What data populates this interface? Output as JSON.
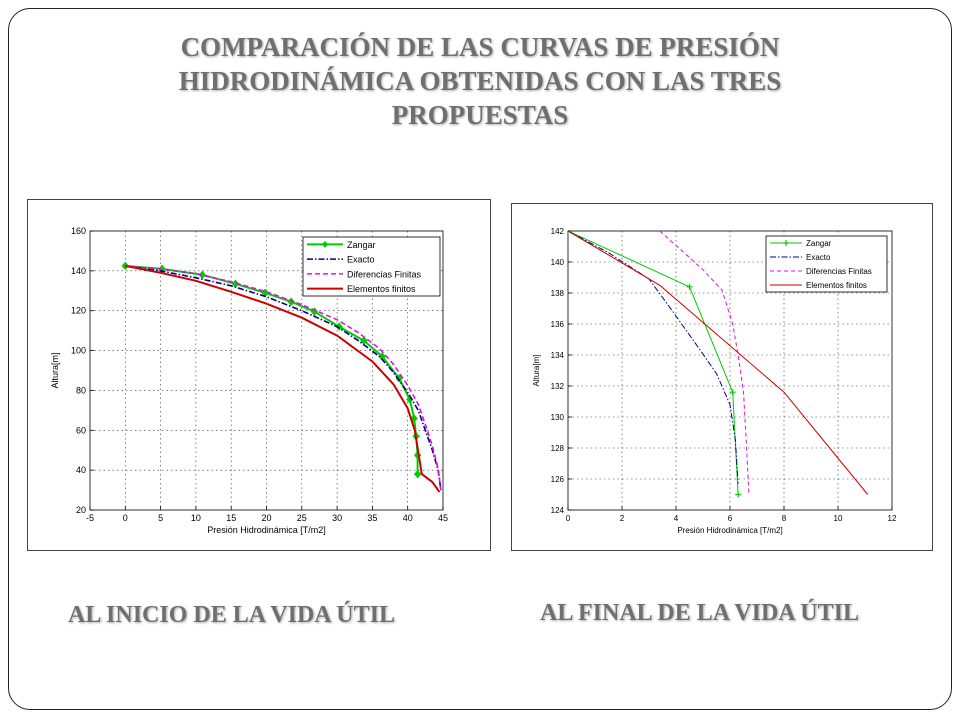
{
  "title": {
    "line1": "COMPARACIÓN DE LAS CURVAS DE PRESIÓN",
    "line2": "HIDRODINÁMICA OBTENIDAS CON LAS TRES",
    "line3": "PROPUESTAS"
  },
  "captions": {
    "left": "AL INICIO DE LA VIDA ÚTIL",
    "right": "AL FINAL DE LA VIDA ÚTIL"
  },
  "chart_data": [
    {
      "type": "line",
      "xlabel": "Presión Hidrodinámica [T/m2]",
      "ylabel": "Altura[m]",
      "xlim": [
        -5,
        45
      ],
      "ylim": [
        20,
        160
      ],
      "xticks": [
        -5,
        0,
        5,
        10,
        15,
        20,
        25,
        30,
        35,
        40,
        45
      ],
      "yticks": [
        20,
        40,
        60,
        80,
        100,
        120,
        140,
        160
      ],
      "grid": true,
      "legend_position": "top-right",
      "series": [
        {
          "name": "Zangar",
          "color": "#00cc00",
          "dash": "",
          "marker": "diamond",
          "width": 2,
          "x": [
            0,
            5.2,
            10.9,
            15.6,
            19.8,
            23.5,
            26.8,
            30.3,
            33.8,
            36.4,
            38.8,
            40.3,
            40.9,
            41.2,
            41.4,
            41.4
          ],
          "y": [
            142.5,
            141,
            138,
            133.5,
            129,
            124.5,
            119.5,
            112,
            105,
            97,
            86,
            75.5,
            66,
            57,
            47.5,
            38
          ]
        },
        {
          "name": "Exacto",
          "color": "#00008b",
          "dash": "6,2,1.5,2",
          "marker": "",
          "width": 1.6,
          "x": [
            0,
            5,
            10,
            15,
            20,
            25,
            30,
            33,
            36,
            38,
            40,
            41.5,
            42.5,
            43.5,
            44.3,
            44.7
          ],
          "y": [
            142.5,
            140,
            136.5,
            132.5,
            127,
            120,
            112,
            105,
            97,
            89,
            79,
            70,
            60,
            50,
            40,
            30
          ]
        },
        {
          "name": "Diferencias Finitas",
          "color": "#e010e0",
          "dash": "5,3",
          "marker": "",
          "width": 1.6,
          "x": [
            0,
            5,
            10,
            15,
            20,
            25,
            30,
            33,
            36,
            38,
            40,
            41.5,
            42.5,
            43.5,
            44.3,
            44.7
          ],
          "y": [
            142.5,
            141,
            138.5,
            134.5,
            129.5,
            123,
            115.5,
            109,
            101,
            93,
            82.5,
            73,
            63,
            52,
            41,
            30
          ]
        },
        {
          "name": "Elementos finitos",
          "color": "#cc0000",
          "dash": "",
          "marker": "",
          "width": 2,
          "x": [
            0,
            5,
            10,
            15,
            20,
            25,
            30,
            35,
            38,
            40,
            41,
            42,
            43.5,
            44.5
          ],
          "y": [
            142.5,
            139,
            135,
            129.5,
            123.5,
            116.5,
            107.5,
            94.5,
            83,
            71,
            60,
            38,
            34,
            29
          ]
        }
      ]
    },
    {
      "type": "line",
      "xlabel": "Presión Hidrodinámica [T/m2]",
      "ylabel": "Altura[m]",
      "xlim": [
        0,
        12
      ],
      "ylim": [
        124,
        142
      ],
      "xticks": [
        0,
        2,
        4,
        6,
        8,
        10,
        12
      ],
      "yticks": [
        124,
        126,
        128,
        130,
        132,
        134,
        136,
        138,
        140,
        142
      ],
      "grid": true,
      "legend_position": "top-right",
      "series": [
        {
          "name": "Zangar",
          "color": "#00cc00",
          "dash": "",
          "marker": "plus",
          "width": 1,
          "x": [
            0,
            4.5,
            6.1,
            6.3
          ],
          "y": [
            142,
            138.4,
            131.6,
            125
          ]
        },
        {
          "name": "Exacto",
          "color": "#00008b",
          "dash": "6,2,1.5,2",
          "marker": "",
          "width": 1,
          "x": [
            0,
            1.5,
            3,
            3.8,
            4.7,
            5.5,
            6.0,
            6.2,
            6.3
          ],
          "y": [
            142,
            140.6,
            138.9,
            137,
            134.8,
            132.8,
            130.8,
            128.5,
            125.7
          ]
        },
        {
          "name": "Diferencias Finitas",
          "color": "#e010e0",
          "dash": "4,3",
          "marker": "",
          "width": 1,
          "x": [
            3.4,
            4.3,
            5,
            5.7,
            6.1,
            6.3,
            6.5,
            6.6,
            6.7
          ],
          "y": [
            142,
            140.6,
            139.5,
            138.2,
            136,
            134,
            131.6,
            128.5,
            125
          ]
        },
        {
          "name": "Elementos finitos",
          "color": "#cc0000",
          "dash": "",
          "marker": "",
          "width": 1,
          "x": [
            0,
            3.4,
            8,
            11.1
          ],
          "y": [
            142,
            138.5,
            131.6,
            125
          ]
        }
      ]
    }
  ]
}
